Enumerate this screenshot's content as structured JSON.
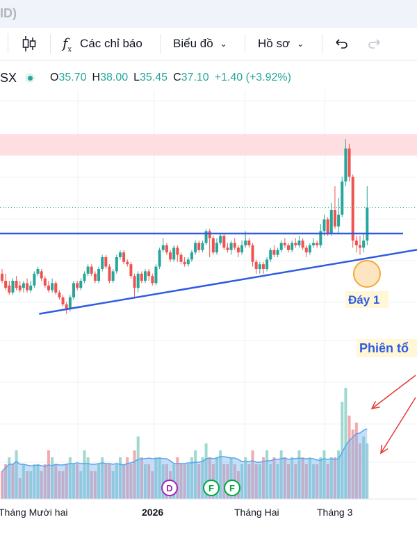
{
  "window": {
    "title_fragment": "ID)"
  },
  "toolbar": {
    "indicators_label": "Các chỉ báo",
    "chart_label": "Biểu đồ",
    "profile_label": "Hồ sơ"
  },
  "legend": {
    "symbol": "SX",
    "open_label": "O",
    "open_value": "35.70",
    "high_label": "H",
    "high_value": "38.00",
    "low_label": "L",
    "low_value": "35.45",
    "close_label": "C",
    "close_value": "37.10",
    "change": "+1.40 (+3.92%)"
  },
  "annotations": {
    "day1": "Đáy 1",
    "session": "Phiên tổ"
  },
  "markers": [
    {
      "letter": "D",
      "color": "#9c27b0",
      "index": 40
    },
    {
      "letter": "F",
      "color": "#00a63e",
      "index": 50
    },
    {
      "letter": "F",
      "color": "#00a63e",
      "index": 55
    }
  ],
  "colors": {
    "up": "#26a69a",
    "down": "#ef5350",
    "trendline": "#2e5be3",
    "resistance_zone": "#ffd8dc",
    "annotation_text": "#2e5be3",
    "annotation_bg": "#fff7d6",
    "arrow": "#e53935",
    "circle": "#f7a833"
  },
  "chart_data": {
    "type": "candlestick",
    "x_ticks": [
      {
        "label": "Tháng Mười hai",
        "index": 0
      },
      {
        "label": "2026",
        "index": 36
      },
      {
        "label": "Tháng Hai",
        "index": 61
      },
      {
        "label": "Tháng 3",
        "index": 80
      }
    ],
    "resistance_zone": [
      39.3,
      40.2
    ],
    "resistance_line": 36.0,
    "support_line": [
      {
        "index": 9,
        "price": 32.6
      },
      {
        "index": 100,
        "price": 35.4
      }
    ],
    "candles": [
      [
        34.3,
        34.0,
        34.5,
        33.9
      ],
      [
        34.0,
        33.7,
        34.3,
        33.6
      ],
      [
        33.8,
        33.5,
        34.0,
        33.4
      ],
      [
        33.5,
        34.0,
        34.1,
        33.4
      ],
      [
        34.0,
        33.7,
        34.2,
        33.6
      ],
      [
        33.8,
        33.6,
        34.0,
        33.5
      ],
      [
        33.7,
        33.9,
        34.0,
        33.5
      ],
      [
        33.9,
        33.6,
        34.1,
        33.5
      ],
      [
        33.6,
        33.8,
        34.0,
        33.5
      ],
      [
        33.8,
        34.3,
        34.4,
        33.7
      ],
      [
        34.3,
        34.5,
        34.6,
        34.2
      ],
      [
        34.4,
        34.1,
        34.5,
        34.0
      ],
      [
        34.1,
        33.8,
        34.2,
        33.7
      ],
      [
        33.8,
        33.6,
        34.0,
        33.5
      ],
      [
        33.6,
        33.9,
        34.1,
        33.5
      ],
      [
        33.9,
        33.5,
        34.0,
        33.4
      ],
      [
        33.5,
        33.3,
        33.6,
        33.2
      ],
      [
        33.3,
        33.0,
        33.4,
        32.9
      ],
      [
        33.0,
        32.8,
        33.1,
        32.6
      ],
      [
        32.8,
        33.3,
        33.4,
        32.7
      ],
      [
        33.3,
        33.9,
        34.0,
        33.2
      ],
      [
        33.9,
        33.7,
        34.0,
        33.6
      ],
      [
        33.7,
        34.0,
        34.1,
        33.6
      ],
      [
        34.0,
        34.3,
        34.4,
        33.9
      ],
      [
        34.3,
        34.6,
        34.7,
        34.2
      ],
      [
        34.6,
        34.3,
        34.7,
        34.2
      ],
      [
        34.3,
        34.0,
        34.4,
        33.9
      ],
      [
        34.0,
        34.5,
        34.6,
        33.9
      ],
      [
        34.5,
        35.0,
        35.1,
        34.4
      ],
      [
        35.0,
        34.6,
        35.1,
        34.5
      ],
      [
        34.6,
        34.0,
        34.7,
        33.9
      ],
      [
        34.0,
        34.4,
        34.5,
        33.9
      ],
      [
        34.4,
        35.0,
        35.1,
        34.3
      ],
      [
        35.0,
        35.2,
        35.3,
        34.9
      ],
      [
        35.2,
        34.8,
        35.3,
        34.7
      ],
      [
        34.8,
        34.7,
        34.9,
        34.6
      ],
      [
        34.7,
        34.2,
        34.8,
        34.1
      ],
      [
        34.2,
        33.7,
        34.3,
        33.3
      ],
      [
        33.7,
        34.3,
        34.4,
        33.5
      ],
      [
        34.3,
        34.0,
        34.4,
        33.9
      ],
      [
        34.0,
        34.4,
        34.5,
        33.9
      ],
      [
        34.4,
        34.2,
        34.5,
        34.0
      ],
      [
        34.2,
        33.9,
        34.3,
        33.8
      ],
      [
        33.9,
        34.6,
        34.7,
        33.8
      ],
      [
        34.6,
        35.3,
        35.4,
        34.5
      ],
      [
        35.3,
        35.5,
        35.8,
        35.2
      ],
      [
        35.5,
        35.2,
        35.6,
        35.1
      ],
      [
        35.2,
        34.9,
        35.3,
        34.8
      ],
      [
        34.9,
        35.4,
        35.5,
        34.8
      ],
      [
        35.4,
        35.1,
        35.5,
        34.8
      ],
      [
        35.1,
        34.8,
        35.2,
        34.7
      ],
      [
        34.8,
        34.7,
        35.0,
        34.6
      ],
      [
        34.7,
        34.9,
        35.0,
        34.6
      ],
      [
        34.9,
        35.2,
        35.3,
        34.8
      ],
      [
        35.2,
        35.6,
        35.7,
        35.1
      ],
      [
        35.6,
        35.3,
        35.7,
        35.2
      ],
      [
        35.3,
        35.6,
        35.7,
        35.2
      ],
      [
        35.6,
        36.1,
        36.2,
        35.5
      ],
      [
        36.1,
        35.8,
        36.2,
        35.0
      ],
      [
        35.8,
        35.2,
        35.9,
        35.1
      ],
      [
        35.2,
        35.6,
        35.8,
        35.1
      ],
      [
        35.6,
        35.9,
        36.0,
        35.5
      ],
      [
        35.9,
        35.4,
        36.0,
        35.3
      ],
      [
        35.4,
        35.3,
        35.6,
        35.2
      ],
      [
        35.3,
        35.6,
        35.7,
        35.1
      ],
      [
        35.6,
        35.4,
        35.8,
        35.3
      ],
      [
        35.4,
        35.2,
        35.5,
        35.0
      ],
      [
        35.2,
        35.5,
        35.7,
        35.1
      ],
      [
        35.5,
        35.7,
        36.1,
        35.4
      ],
      [
        35.7,
        35.5,
        35.8,
        35.4
      ],
      [
        35.5,
        34.8,
        35.6,
        34.6
      ],
      [
        34.8,
        34.5,
        34.9,
        34.3
      ],
      [
        34.5,
        34.7,
        34.8,
        34.3
      ],
      [
        34.7,
        34.5,
        34.8,
        34.3
      ],
      [
        34.5,
        34.9,
        35.0,
        34.4
      ],
      [
        34.9,
        35.3,
        35.4,
        34.8
      ],
      [
        35.3,
        35.1,
        35.5,
        35.0
      ],
      [
        35.1,
        35.3,
        35.4,
        35.0
      ],
      [
        35.3,
        35.6,
        35.7,
        35.2
      ],
      [
        35.6,
        35.5,
        35.8,
        35.4
      ],
      [
        35.5,
        35.3,
        35.6,
        35.2
      ],
      [
        35.3,
        35.6,
        35.7,
        35.2
      ],
      [
        35.6,
        35.5,
        35.8,
        35.4
      ],
      [
        35.5,
        35.7,
        35.9,
        35.4
      ],
      [
        35.7,
        35.4,
        35.8,
        35.3
      ],
      [
        35.4,
        35.2,
        35.5,
        35.0
      ],
      [
        35.2,
        35.5,
        35.6,
        35.1
      ],
      [
        35.5,
        35.6,
        35.8,
        35.4
      ],
      [
        35.6,
        35.5,
        35.7,
        35.4
      ],
      [
        35.5,
        36.1,
        36.4,
        35.4
      ],
      [
        36.1,
        36.6,
        36.8,
        35.9
      ],
      [
        36.6,
        36.0,
        36.7,
        35.9
      ],
      [
        36.0,
        37.0,
        37.3,
        35.9
      ],
      [
        37.0,
        36.3,
        38.0,
        36.2
      ],
      [
        36.3,
        36.8,
        37.5,
        36.0
      ],
      [
        36.8,
        38.2,
        38.4,
        36.7
      ],
      [
        38.2,
        39.6,
        40.0,
        38.0
      ],
      [
        39.6,
        38.4,
        39.8,
        38.2
      ],
      [
        38.4,
        35.7,
        38.5,
        35.4
      ],
      [
        35.7,
        35.5,
        35.9,
        35.2
      ],
      [
        35.5,
        35.4,
        35.9,
        35.1
      ],
      [
        35.4,
        35.7,
        36.0,
        35.2
      ],
      [
        35.7,
        37.1,
        38.0,
        35.5
      ]
    ],
    "volume_up": [
      0,
      0,
      1,
      0,
      1,
      0,
      1,
      0,
      1,
      1,
      1,
      0,
      0,
      0,
      1,
      0,
      0,
      0,
      0,
      1,
      1,
      0,
      1,
      1,
      1,
      0,
      0,
      1,
      1,
      0,
      0,
      1,
      1,
      1,
      0,
      0,
      0,
      0,
      1,
      0,
      1,
      0,
      0,
      1,
      1,
      1,
      0,
      0,
      1,
      0,
      0,
      0,
      1,
      1,
      1,
      0,
      1,
      1,
      0,
      0,
      1,
      1,
      0,
      0,
      1,
      0,
      0,
      1,
      1,
      0,
      0,
      0,
      1,
      0,
      1,
      1,
      0,
      1,
      1,
      0,
      0,
      1,
      0,
      1,
      0,
      0,
      1,
      1,
      0,
      1,
      1,
      0,
      1,
      0,
      1,
      1,
      1,
      0,
      0,
      0,
      0,
      1,
      1
    ],
    "volumes": [
      4,
      5,
      6,
      5,
      7,
      3,
      5,
      4,
      4,
      5,
      5,
      4,
      5,
      7,
      6,
      5,
      4,
      4,
      5,
      6,
      5,
      5,
      4,
      7,
      6,
      4,
      4,
      5,
      6,
      5,
      5,
      4,
      5,
      6,
      5,
      6,
      5,
      7,
      9,
      6,
      5,
      5,
      4,
      6,
      6,
      5,
      5,
      4,
      5,
      6,
      5,
      5,
      5,
      6,
      7,
      5,
      6,
      8,
      6,
      5,
      6,
      7,
      5,
      5,
      6,
      5,
      4,
      5,
      6,
      5,
      7,
      5,
      5,
      6,
      7,
      5,
      6,
      5,
      7,
      6,
      5,
      6,
      5,
      7,
      6,
      5,
      6,
      5,
      5,
      6,
      7,
      5,
      6,
      6,
      7,
      14,
      16,
      12,
      10,
      11,
      8,
      9,
      8
    ]
  }
}
